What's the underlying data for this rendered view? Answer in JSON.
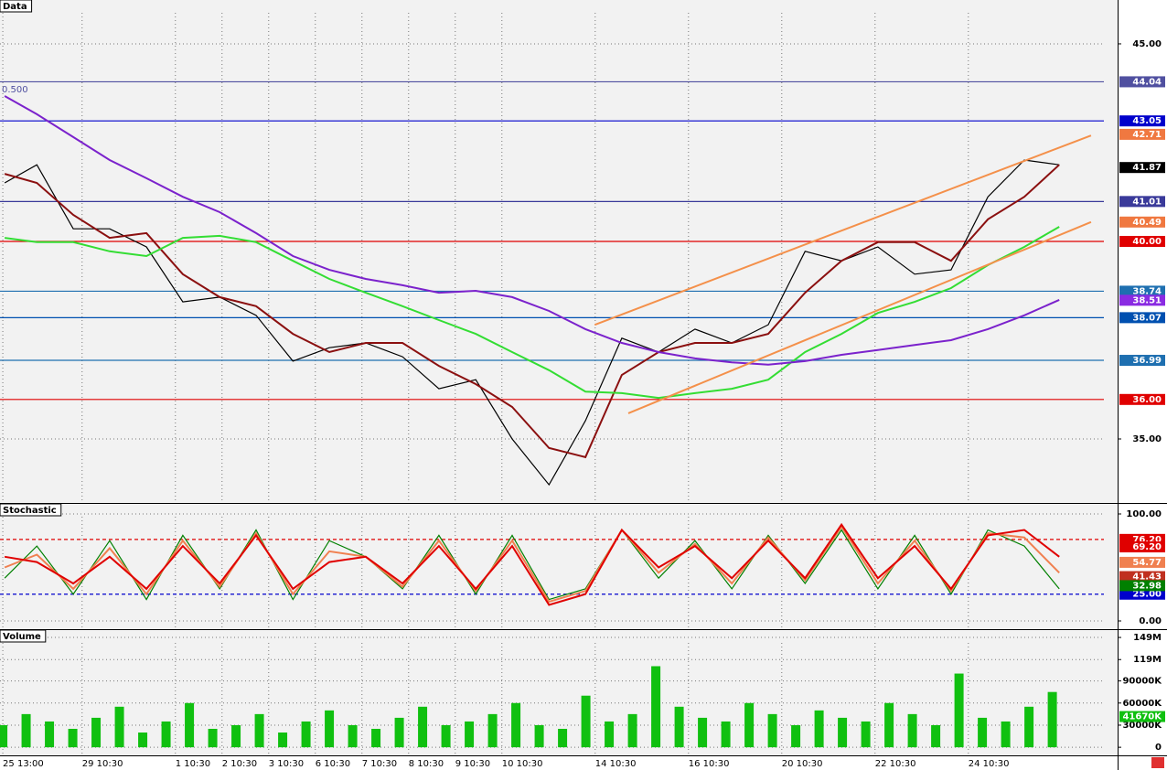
{
  "chart_data": [
    {
      "type": "line",
      "title": "Data",
      "annotation": "0.500",
      "x": [
        0.04,
        0.73,
        1.51,
        2.29,
        3.08,
        3.86,
        4.65,
        5.43,
        6.22,
        7.0,
        7.78,
        8.57,
        9.35,
        10.14,
        10.92,
        11.71,
        12.49,
        13.27,
        14.06,
        14.84,
        15.63,
        16.41,
        17.2,
        17.98,
        18.76,
        19.55,
        20.33,
        21.12,
        21.9,
        22.65
      ],
      "series": [
        {
          "color": "#000000",
          "values": [
            41.48,
            41.94,
            40.32,
            40.32,
            39.86,
            38.47,
            38.59,
            38.13,
            36.97,
            37.31,
            37.43,
            37.08,
            36.27,
            36.5,
            35.0,
            33.84,
            35.46,
            37.55,
            37.2,
            37.78,
            37.43,
            37.89,
            39.75,
            39.51,
            39.86,
            39.17,
            39.28,
            41.13,
            42.06,
            41.94
          ]
        },
        {
          "color": "#8b1010",
          "values": [
            41.71,
            41.48,
            40.67,
            40.09,
            40.21,
            39.17,
            38.59,
            38.36,
            37.66,
            37.2,
            37.43,
            37.43,
            36.85,
            36.39,
            35.81,
            34.77,
            34.54,
            36.62,
            37.2,
            37.43,
            37.43,
            37.66,
            38.7,
            39.51,
            39.98,
            39.98,
            39.51,
            40.56,
            41.13,
            41.94
          ]
        },
        {
          "color": "#33dd33",
          "values": [
            40.09,
            39.98,
            39.98,
            39.75,
            39.63,
            40.09,
            40.14,
            39.98,
            39.51,
            39.05,
            38.7,
            38.36,
            38.01,
            37.66,
            37.2,
            36.74,
            36.2,
            36.16,
            36.04,
            36.16,
            36.27,
            36.5,
            37.2,
            37.66,
            38.19,
            38.47,
            38.82,
            39.4,
            39.86,
            40.37
          ]
        },
        {
          "color": "#7b22cc",
          "values": [
            43.68,
            43.22,
            42.64,
            42.06,
            41.6,
            41.13,
            40.74,
            40.21,
            39.63,
            39.28,
            39.05,
            38.89,
            38.7,
            38.75,
            38.59,
            38.24,
            37.78,
            37.43,
            37.2,
            37.04,
            36.94,
            36.88,
            36.97,
            37.13,
            37.25,
            37.38,
            37.5,
            37.78,
            38.13,
            38.52
          ]
        }
      ],
      "trendlines": [
        {
          "color": "#f4904a",
          "x": [
            12.69,
            23.33
          ],
          "values": [
            37.89,
            42.68
          ]
        },
        {
          "color": "#f4904a",
          "x": [
            13.41,
            23.33
          ],
          "values": [
            35.65,
            40.49
          ]
        }
      ],
      "ylim": [
        33.38,
        46.11
      ],
      "yticks": [
        {
          "value": 45,
          "label": "45.00"
        },
        {
          "value": 35,
          "label": "35.00"
        }
      ],
      "levels": [
        {
          "value": 44.04,
          "color": "#5050a0"
        },
        {
          "value": 43.05,
          "color": "#0000cc"
        },
        {
          "value": 41.01,
          "color": "#3a3a9a"
        },
        {
          "value": 40,
          "label": "40.00",
          "color": "#e00000"
        },
        {
          "value": 38.74,
          "color": "#1e6fb0"
        },
        {
          "value": 38.07,
          "color": "#0050b0"
        },
        {
          "value": 36.99,
          "color": "#1e6fb0"
        },
        {
          "value": 36,
          "label": "36.00",
          "color": "#e00000"
        }
      ],
      "markers": [
        {
          "value": 42.71,
          "color": "#f07840"
        },
        {
          "value": 41.87,
          "color": "#000000"
        },
        {
          "value": 40.49,
          "color": "#f07840"
        },
        {
          "value": 38.51,
          "color": "#8a2be2"
        }
      ]
    },
    {
      "type": "line",
      "title": "Stochastic",
      "x": [
        0.04,
        0.73,
        1.51,
        2.29,
        3.08,
        3.86,
        4.65,
        5.43,
        6.22,
        7.0,
        7.78,
        8.57,
        9.35,
        10.14,
        10.92,
        11.71,
        12.49,
        13.27,
        14.06,
        14.84,
        15.63,
        16.41,
        17.2,
        17.98,
        18.76,
        19.55,
        20.33,
        21.12,
        21.9,
        22.65
      ],
      "series": [
        {
          "color": "#008000",
          "values": [
            40,
            70,
            25,
            75,
            20,
            80,
            30,
            85,
            20,
            75,
            60,
            30,
            80,
            25,
            80,
            20,
            30,
            85,
            40,
            75,
            30,
            80,
            35,
            85,
            30,
            80,
            25,
            85,
            70,
            30
          ]
        },
        {
          "color": "#f08050",
          "values": [
            50,
            62,
            30,
            68,
            25,
            75,
            32,
            82,
            25,
            65,
            60,
            32,
            75,
            28,
            75,
            18,
            28,
            85,
            45,
            72,
            35,
            78,
            38,
            88,
            35,
            75,
            28,
            82,
            78,
            45
          ]
        },
        {
          "color": "#e00000",
          "values": [
            60,
            55,
            35,
            60,
            30,
            70,
            35,
            80,
            30,
            55,
            60,
            35,
            70,
            30,
            70,
            15,
            25,
            85,
            50,
            70,
            40,
            75,
            40,
            90,
            40,
            70,
            30,
            80,
            85,
            60
          ]
        }
      ],
      "ylim": [
        -7.7,
        109.4
      ],
      "yticks": [
        {
          "value": 100,
          "label": "100.00"
        },
        {
          "value": 0,
          "label": "0.00"
        }
      ],
      "levels": [
        {
          "value": 76.2,
          "label": "76.20",
          "color": "#e00000",
          "dashed": true
        },
        {
          "value": 25,
          "label": "25.00",
          "color": "#0000cc",
          "dashed": true
        }
      ],
      "markers": [
        {
          "value": 69.2,
          "label": "69.20",
          "color": "#e00000"
        },
        {
          "value": 54.77,
          "color": "#f08050"
        },
        {
          "value": 41.43,
          "color": "#c03020"
        },
        {
          "value": 32.98,
          "color": "#008000"
        }
      ]
    },
    {
      "type": "bar",
      "title": "Volume",
      "color": "#10c010",
      "x": [
        0,
        0.5,
        1,
        1.5,
        2,
        2.5,
        3,
        3.5,
        4,
        4.5,
        5,
        5.5,
        6,
        6.5,
        7,
        7.5,
        8,
        8.5,
        9,
        9.5,
        10,
        10.5,
        11,
        11.5,
        12,
        12.5,
        13,
        13.5,
        14,
        14.5,
        15,
        15.5,
        16,
        16.5,
        17,
        17.5,
        18,
        18.5,
        19,
        19.5,
        20,
        20.5,
        21,
        21.5,
        22,
        22.5
      ],
      "values": [
        30000000,
        45000000,
        35000000,
        25000000,
        40000000,
        55000000,
        20000000,
        35000000,
        60000000,
        25000000,
        30000000,
        45000000,
        20000000,
        35000000,
        50000000,
        30000000,
        25000000,
        40000000,
        55000000,
        30000000,
        35000000,
        45000000,
        60000000,
        30000000,
        25000000,
        70000000,
        35000000,
        45000000,
        110000000,
        55000000,
        40000000,
        35000000,
        60000000,
        45000000,
        30000000,
        50000000,
        40000000,
        35000000,
        60000000,
        45000000,
        30000000,
        100000000,
        40000000,
        35000000,
        55000000,
        75000000
      ],
      "ylim": [
        -11000000,
        159000000
      ],
      "yticks": [
        {
          "value": 149000000,
          "label": "149M"
        },
        {
          "value": 119000000,
          "label": "119M"
        },
        {
          "value": 90000000,
          "label": "90000K"
        },
        {
          "value": 60000000,
          "label": "60000K"
        },
        {
          "value": 30000000,
          "label": "30000K"
        },
        0
      ],
      "markers": [
        {
          "value": 41670000,
          "label": "41670K",
          "color": "#10c010"
        }
      ],
      "xlim": [
        -0.06,
        23.9
      ],
      "xticks": [
        {
          "value": 0,
          "label": "25 13:00"
        },
        {
          "value": 1.7,
          "label": "29 10:30"
        },
        {
          "value": 3.7,
          "label": "1 10:30"
        },
        {
          "value": 4.7,
          "label": "2 10:30"
        },
        {
          "value": 5.7,
          "label": "3 10:30"
        },
        {
          "value": 6.7,
          "label": "6 10:30"
        },
        {
          "value": 7.7,
          "label": "7 10:30"
        },
        {
          "value": 8.7,
          "label": "8 10:30"
        },
        {
          "value": 9.7,
          "label": "9 10:30"
        },
        {
          "value": 10.7,
          "label": "10 10:30"
        },
        {
          "value": 12.7,
          "label": "14 10:30"
        },
        {
          "value": 14.7,
          "label": "16 10:30"
        },
        {
          "value": 16.7,
          "label": "20 10:30"
        },
        {
          "value": 18.7,
          "label": "22 10:30"
        },
        {
          "value": 20.7,
          "label": "24 10:30"
        }
      ]
    }
  ]
}
